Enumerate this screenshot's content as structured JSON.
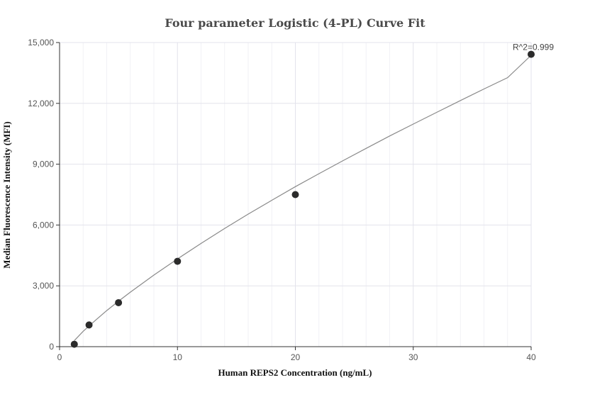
{
  "chart_data": {
    "type": "scatter",
    "title": "Four parameter Logistic (4-PL) Curve Fit",
    "xlabel": "Human REPS2 Concentration (ng/mL)",
    "ylabel": "Median Fluorescence Intensity (MFI)",
    "xlim": [
      0,
      40
    ],
    "ylim": [
      0,
      15000
    ],
    "x_ticks": [
      0,
      10,
      20,
      30,
      40
    ],
    "x_tick_labels": [
      "0",
      "10",
      "20",
      "30",
      "40"
    ],
    "y_ticks": [
      0,
      3000,
      6000,
      9000,
      12000,
      15000
    ],
    "y_tick_labels": [
      "0",
      "3,000",
      "6,000",
      "9,000",
      "12,000",
      "15,000"
    ],
    "grid": true,
    "series": [
      {
        "type": "scatter",
        "x": [
          1.25,
          2.5,
          5,
          10,
          20,
          40
        ],
        "y": [
          120,
          1070,
          2170,
          4210,
          7500,
          14420
        ]
      },
      {
        "type": "line",
        "x": [
          1.25,
          2,
          3,
          4,
          5,
          6,
          8,
          10,
          12,
          14,
          16,
          18,
          20,
          22,
          24,
          26,
          28,
          30,
          32,
          34,
          36,
          38,
          40
        ],
        "y": [
          300,
          760,
          1280,
          1780,
          2240,
          2690,
          3530,
          4330,
          5090,
          5830,
          6540,
          7220,
          7890,
          8530,
          9160,
          9780,
          10390,
          10980,
          11560,
          12140,
          12710,
          13270,
          14370
        ]
      }
    ],
    "annotations": [
      {
        "text": "R^2=0.999",
        "x": 40,
        "y": 14420
      }
    ],
    "colors": {
      "points": "#2b2b2b",
      "curve": "#8a8a8a",
      "grid": "#e3e3ec"
    }
  }
}
